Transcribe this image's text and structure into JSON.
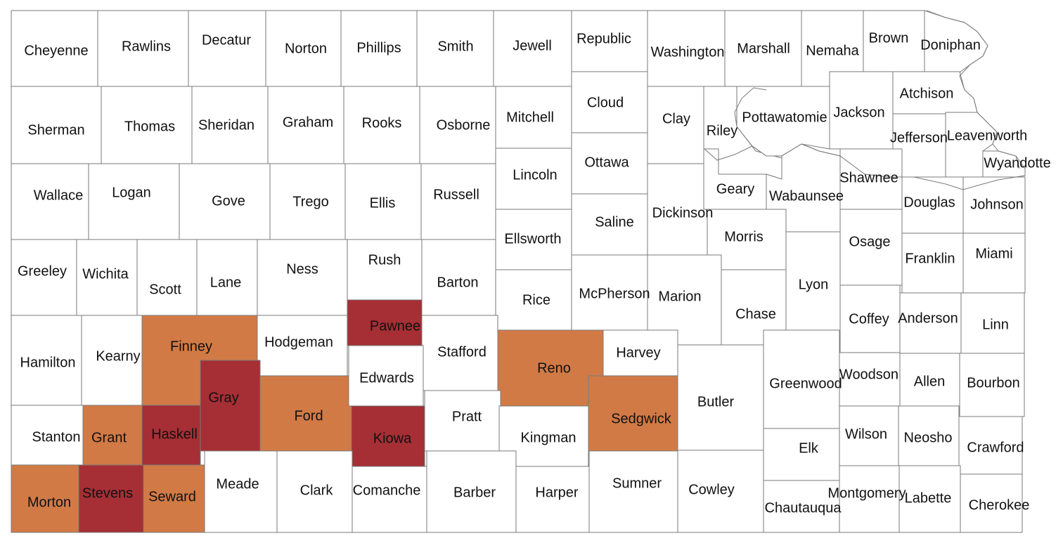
{
  "colors": {
    "none": "#ffffff",
    "orange": "#d17a46",
    "red": "#a52f34",
    "border": "#7a7a7a"
  },
  "counties": {
    "cheyenne": {
      "name": "Cheyenne",
      "status": "none"
    },
    "rawlins": {
      "name": "Rawlins",
      "status": "none"
    },
    "decatur": {
      "name": "Decatur",
      "status": "none"
    },
    "norton": {
      "name": "Norton",
      "status": "none"
    },
    "phillips": {
      "name": "Phillips",
      "status": "none"
    },
    "smith": {
      "name": "Smith",
      "status": "none"
    },
    "jewell": {
      "name": "Jewell",
      "status": "none"
    },
    "republic": {
      "name": "Republic",
      "status": "none"
    },
    "washington": {
      "name": "Washington",
      "status": "none"
    },
    "marshall": {
      "name": "Marshall",
      "status": "none"
    },
    "nemaha": {
      "name": "Nemaha",
      "status": "none"
    },
    "brown": {
      "name": "Brown",
      "status": "none"
    },
    "doniphan": {
      "name": "Doniphan",
      "status": "none"
    },
    "sherman": {
      "name": "Sherman",
      "status": "none"
    },
    "thomas": {
      "name": "Thomas",
      "status": "none"
    },
    "sheridan": {
      "name": "Sheridan",
      "status": "none"
    },
    "graham": {
      "name": "Graham",
      "status": "none"
    },
    "rooks": {
      "name": "Rooks",
      "status": "none"
    },
    "osborne": {
      "name": "Osborne",
      "status": "none"
    },
    "mitchell": {
      "name": "Mitchell",
      "status": "none"
    },
    "cloud": {
      "name": "Cloud",
      "status": "none"
    },
    "clay": {
      "name": "Clay",
      "status": "none"
    },
    "riley": {
      "name": "Riley",
      "status": "none"
    },
    "pottawatomie": {
      "name": "Pottawatomie",
      "status": "none"
    },
    "jackson": {
      "name": "Jackson",
      "status": "none"
    },
    "atchison": {
      "name": "Atchison",
      "status": "none"
    },
    "jefferson": {
      "name": "Jefferson",
      "status": "none"
    },
    "leavenworth": {
      "name": "Leavenworth",
      "status": "none"
    },
    "wyandotte": {
      "name": "Wyandotte",
      "status": "none"
    },
    "wallace": {
      "name": "Wallace",
      "status": "none"
    },
    "logan": {
      "name": "Logan",
      "status": "none"
    },
    "gove": {
      "name": "Gove",
      "status": "none"
    },
    "trego": {
      "name": "Trego",
      "status": "none"
    },
    "ellis": {
      "name": "Ellis",
      "status": "none"
    },
    "russell": {
      "name": "Russell",
      "status": "none"
    },
    "lincoln": {
      "name": "Lincoln",
      "status": "none"
    },
    "ottawa": {
      "name": "Ottawa",
      "status": "none"
    },
    "dickinson": {
      "name": "Dickinson",
      "status": "none"
    },
    "geary": {
      "name": "Geary",
      "status": "none"
    },
    "wabaunsee": {
      "name": "Wabaunsee",
      "status": "none"
    },
    "shawnee": {
      "name": "Shawnee",
      "status": "none"
    },
    "douglas": {
      "name": "Douglas",
      "status": "none"
    },
    "johnson": {
      "name": "Johnson",
      "status": "none"
    },
    "greeley": {
      "name": "Greeley",
      "status": "none"
    },
    "wichita": {
      "name": "Wichita",
      "status": "none"
    },
    "scott": {
      "name": "Scott",
      "status": "none"
    },
    "lane": {
      "name": "Lane",
      "status": "none"
    },
    "ness": {
      "name": "Ness",
      "status": "none"
    },
    "rush": {
      "name": "Rush",
      "status": "none"
    },
    "barton": {
      "name": "Barton",
      "status": "none"
    },
    "ellsworth": {
      "name": "Ellsworth",
      "status": "none"
    },
    "saline": {
      "name": "Saline",
      "status": "none"
    },
    "morris": {
      "name": "Morris",
      "status": "none"
    },
    "osage": {
      "name": "Osage",
      "status": "none"
    },
    "franklin": {
      "name": "Franklin",
      "status": "none"
    },
    "miami": {
      "name": "Miami",
      "status": "none"
    },
    "rice": {
      "name": "Rice",
      "status": "none"
    },
    "mcpherson": {
      "name": "McPherson",
      "status": "none"
    },
    "marion": {
      "name": "Marion",
      "status": "none"
    },
    "chase": {
      "name": "Chase",
      "status": "none"
    },
    "lyon": {
      "name": "Lyon",
      "status": "none"
    },
    "coffey": {
      "name": "Coffey",
      "status": "none"
    },
    "anderson": {
      "name": "Anderson",
      "status": "none"
    },
    "linn": {
      "name": "Linn",
      "status": "none"
    },
    "hamilton": {
      "name": "Hamilton",
      "status": "none"
    },
    "kearny": {
      "name": "Kearny",
      "status": "none"
    },
    "finney": {
      "name": "Finney",
      "status": "orange"
    },
    "hodgeman": {
      "name": "Hodgeman",
      "status": "none"
    },
    "pawnee": {
      "name": "Pawnee",
      "status": "red"
    },
    "stafford": {
      "name": "Stafford",
      "status": "none"
    },
    "edwards": {
      "name": "Edwards",
      "status": "none"
    },
    "reno": {
      "name": "Reno",
      "status": "orange"
    },
    "harvey": {
      "name": "Harvey",
      "status": "none"
    },
    "butler": {
      "name": "Butler",
      "status": "none"
    },
    "greenwood": {
      "name": "Greenwood",
      "status": "none"
    },
    "woodson": {
      "name": "Woodson",
      "status": "none"
    },
    "allen": {
      "name": "Allen",
      "status": "none"
    },
    "bourbon": {
      "name": "Bourbon",
      "status": "none"
    },
    "gray": {
      "name": "Gray",
      "status": "red"
    },
    "ford": {
      "name": "Ford",
      "status": "orange"
    },
    "stanton": {
      "name": "Stanton",
      "status": "none"
    },
    "grant": {
      "name": "Grant",
      "status": "orange"
    },
    "haskell": {
      "name": "Haskell",
      "status": "red"
    },
    "kiowa": {
      "name": "Kiowa",
      "status": "red"
    },
    "pratt": {
      "name": "Pratt",
      "status": "none"
    },
    "kingman": {
      "name": "Kingman",
      "status": "none"
    },
    "sedgwick": {
      "name": "Sedgwick",
      "status": "orange"
    },
    "elk": {
      "name": "Elk",
      "status": "none"
    },
    "wilson": {
      "name": "Wilson",
      "status": "none"
    },
    "neosho": {
      "name": "Neosho",
      "status": "none"
    },
    "crawford": {
      "name": "Crawford",
      "status": "none"
    },
    "morton": {
      "name": "Morton",
      "status": "orange"
    },
    "stevens": {
      "name": "Stevens",
      "status": "red"
    },
    "seward": {
      "name": "Seward",
      "status": "orange"
    },
    "meade": {
      "name": "Meade",
      "status": "none"
    },
    "clark": {
      "name": "Clark",
      "status": "none"
    },
    "comanche": {
      "name": "Comanche",
      "status": "none"
    },
    "barber": {
      "name": "Barber",
      "status": "none"
    },
    "harper": {
      "name": "Harper",
      "status": "none"
    },
    "sumner": {
      "name": "Sumner",
      "status": "none"
    },
    "cowley": {
      "name": "Cowley",
      "status": "none"
    },
    "chautauqua": {
      "name": "Chautauqua",
      "status": "none"
    },
    "montgomery": {
      "name": "Montgomery",
      "status": "none"
    },
    "labette": {
      "name": "Labette",
      "status": "none"
    },
    "cherokee": {
      "name": "Cherokee",
      "status": "none"
    }
  }
}
